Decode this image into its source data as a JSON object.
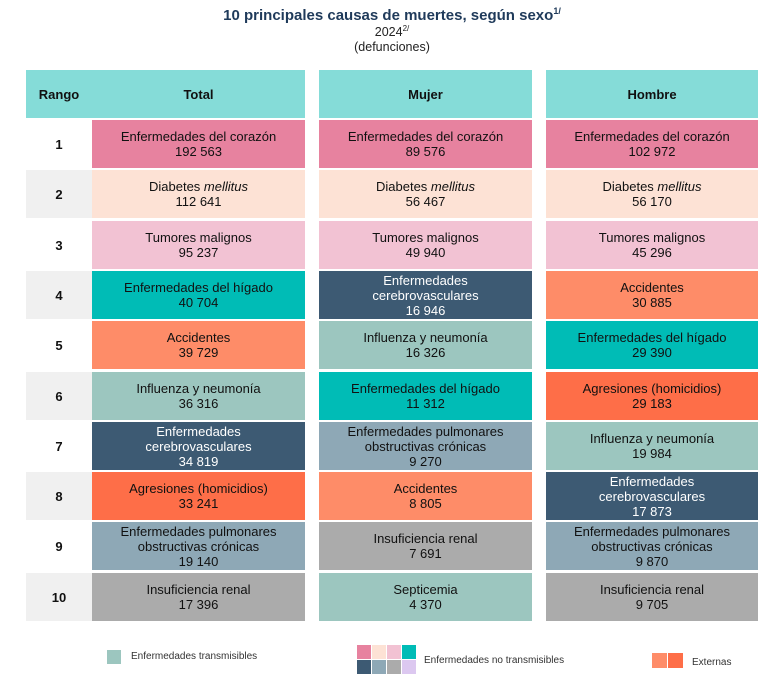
{
  "title": "10 principales causas de muertes, según sexo",
  "title_sup": "1/",
  "year": "2024",
  "year_sup": "2/",
  "unit": "(defunciones)",
  "headers": {
    "rank": "Rango",
    "total": "Total",
    "mujer": "Mujer",
    "hombre": "Hombre"
  },
  "colors": {
    "heart": "#e7829f",
    "diabetes": "#fde2d5",
    "tumors": "#f2c2d3",
    "liver": "#00bcb6",
    "accidents": "#fe8c68",
    "flu": "#9cc6bf",
    "cerebro": "#3d5a73",
    "homicides": "#fe6e48",
    "epoc": "#8ea8b6",
    "renal": "#ababab",
    "septicemia": "#9cc6bf"
  },
  "rows": [
    {
      "rank": "1",
      "total": {
        "cause": "Enfermedades del corazón",
        "value": "192 563",
        "cat": "heart"
      },
      "mujer": {
        "cause": "Enfermedades del corazón",
        "value": "89 576",
        "cat": "heart"
      },
      "hombre": {
        "cause": "Enfermedades del corazón",
        "value": "102 972",
        "cat": "heart"
      }
    },
    {
      "rank": "2",
      "total": {
        "cause": "Diabetes",
        "italic": "mellitus",
        "value": "112 641",
        "cat": "diabetes"
      },
      "mujer": {
        "cause": "Diabetes",
        "italic": "mellitus",
        "value": "56 467",
        "cat": "diabetes"
      },
      "hombre": {
        "cause": "Diabetes",
        "italic": "mellitus",
        "value": "56 170",
        "cat": "diabetes"
      }
    },
    {
      "rank": "3",
      "total": {
        "cause": "Tumores malignos",
        "value": "95 237",
        "cat": "tumors"
      },
      "mujer": {
        "cause": "Tumores malignos",
        "value": "49 940",
        "cat": "tumors"
      },
      "hombre": {
        "cause": "Tumores malignos",
        "value": "45 296",
        "cat": "tumors"
      }
    },
    {
      "rank": "4",
      "total": {
        "cause": "Enfermedades del hígado",
        "value": "40 704",
        "cat": "liver"
      },
      "mujer": {
        "cause": "Enfermedades cerebrovasculares",
        "value": "16 946",
        "cat": "cerebro"
      },
      "hombre": {
        "cause": "Accidentes",
        "value": "30 885",
        "cat": "accidents"
      }
    },
    {
      "rank": "5",
      "total": {
        "cause": "Accidentes",
        "value": "39 729",
        "cat": "accidents"
      },
      "mujer": {
        "cause": "Influenza y neumonía",
        "value": "16 326",
        "cat": "flu"
      },
      "hombre": {
        "cause": "Enfermedades del hígado",
        "value": "29 390",
        "cat": "liver"
      }
    },
    {
      "rank": "6",
      "total": {
        "cause": "Influenza y neumonía",
        "value": "36 316",
        "cat": "flu"
      },
      "mujer": {
        "cause": "Enfermedades del hígado",
        "value": "11 312",
        "cat": "liver"
      },
      "hombre": {
        "cause": "Agresiones (homicidios)",
        "value": "29 183",
        "cat": "homicides"
      }
    },
    {
      "rank": "7",
      "total": {
        "cause": "Enfermedades cerebrovasculares",
        "value": "34 819",
        "cat": "cerebro"
      },
      "mujer": {
        "cause": "Enfermedades pulmonares obstructivas crónicas",
        "value": "9 270",
        "cat": "epoc"
      },
      "hombre": {
        "cause": "Influenza y neumonía",
        "value": "19 984",
        "cat": "flu"
      }
    },
    {
      "rank": "8",
      "total": {
        "cause": "Agresiones (homicidios)",
        "value": "33 241",
        "cat": "homicides"
      },
      "mujer": {
        "cause": "Accidentes",
        "value": "8 805",
        "cat": "accidents"
      },
      "hombre": {
        "cause": "Enfermedades cerebrovasculares",
        "value": "17 873",
        "cat": "cerebro"
      }
    },
    {
      "rank": "9",
      "total": {
        "cause": "Enfermedades pulmonares obstructivas crónicas",
        "value": "19 140",
        "cat": "epoc"
      },
      "mujer": {
        "cause": "Insuficiencia renal",
        "value": "7 691",
        "cat": "renal"
      },
      "hombre": {
        "cause": "Enfermedades pulmonares obstructivas crónicas",
        "value": "9 870",
        "cat": "epoc"
      }
    },
    {
      "rank": "10",
      "total": {
        "cause": "Insuficiencia renal",
        "value": "17 396",
        "cat": "renal"
      },
      "mujer": {
        "cause": "Septicemia",
        "value": "4 370",
        "cat": "septicemia"
      },
      "hombre": {
        "cause": "Insuficiencia renal",
        "value": "9 705",
        "cat": "renal"
      }
    }
  ],
  "legend": {
    "transmisibles": {
      "label": "Enfermedades transmisibles",
      "color": "#9cc6bf"
    },
    "no_transmisibles": {
      "label": "Enfermedades no transmisibles",
      "colors": [
        "#e7829f",
        "#fde2d5",
        "#f2c2d3",
        "#00bcb6",
        "#3d5a73",
        "#8ea8b6",
        "#ababab",
        "#dcc8f0"
      ]
    },
    "externas": {
      "label": "Externas",
      "colors": [
        "#fe8c68",
        "#fe6e48"
      ]
    }
  }
}
